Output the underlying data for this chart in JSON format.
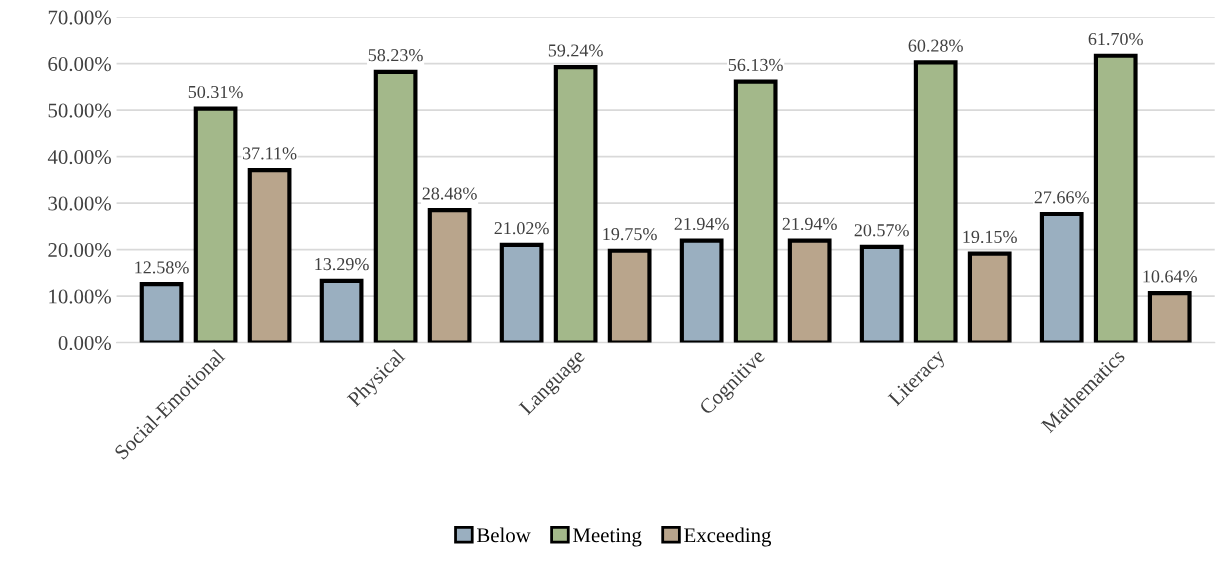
{
  "chart_data": {
    "type": "bar",
    "categories": [
      "Social-Emotional",
      "Physical",
      "Language",
      "Cognitive",
      "Literacy",
      "Mathematics"
    ],
    "series": [
      {
        "name": "Below",
        "color": "#9aafc0",
        "values": [
          12.58,
          13.29,
          21.02,
          21.94,
          20.57,
          27.66
        ],
        "value_labels": [
          "12.58%",
          "13.29%",
          "21.02%",
          "21.94%",
          "20.57%",
          "27.66%"
        ]
      },
      {
        "name": "Meeting",
        "color": "#a3b88a",
        "values": [
          50.31,
          58.23,
          59.24,
          56.13,
          60.28,
          61.7
        ],
        "value_labels": [
          "50.31%",
          "58.23%",
          "59.24%",
          "56.13%",
          "60.28%",
          "61.70%"
        ]
      },
      {
        "name": "Exceeding",
        "color": "#b9a58c",
        "values": [
          37.11,
          28.48,
          19.75,
          21.94,
          19.15,
          10.64
        ],
        "value_labels": [
          "37.11%",
          "28.48%",
          "19.75%",
          "21.94%",
          "19.15%",
          "10.64%"
        ]
      }
    ],
    "ylim": [
      0,
      70
    ],
    "yticks": [
      {
        "value": 0,
        "label": "0.00%"
      },
      {
        "value": 10,
        "label": "10.00%"
      },
      {
        "value": 20,
        "label": "20.00%"
      },
      {
        "value": 30,
        "label": "30.00%"
      },
      {
        "value": 40,
        "label": "40.00%"
      },
      {
        "value": 50,
        "label": "50.00%"
      },
      {
        "value": 60,
        "label": "60.00%"
      },
      {
        "value": 70,
        "label": "70.00%"
      }
    ],
    "grid": "y",
    "legend": "bottom"
  }
}
